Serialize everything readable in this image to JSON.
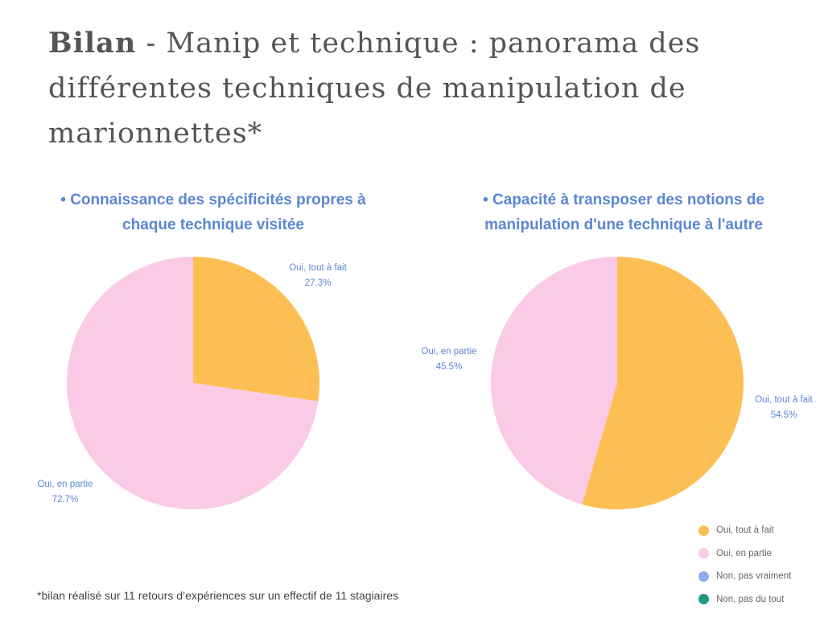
{
  "title": {
    "bold": "Bilan",
    "rest": " - Manip et technique : panorama des différentes techniques de manipulation de marionnettes*"
  },
  "colors": {
    "Oui, tout à fait": "#fdbf54",
    "Oui, en partie": "#fbcae6",
    "Non, pas vraiment": "#8eabf0",
    "Non, pas du tout": "#1e9a86"
  },
  "chart_data": [
    {
      "type": "pie",
      "title": "• Connaissance des spécificités propres à chaque technique visitée",
      "slices": [
        {
          "label": "Oui, tout à fait",
          "value": 27.3,
          "text": "27.3%"
        },
        {
          "label": "Oui, en partie",
          "value": 72.7,
          "text": "72.7%"
        }
      ]
    },
    {
      "type": "pie",
      "title": "• Capacité à transposer des notions de manipulation d'une technique à l'autre",
      "slices": [
        {
          "label": "Oui, tout à fait",
          "value": 54.5,
          "text": "54.5%"
        },
        {
          "label": "Oui, en partie",
          "value": 45.5,
          "text": "45.5%"
        }
      ]
    }
  ],
  "legend": [
    "Oui, tout à fait",
    "Oui, en partie",
    "Non, pas vraiment",
    "Non, pas du tout"
  ],
  "footnote": "*bilan réalisé sur 11 retours d’expériences sur un effectif de 11 stagiaires"
}
